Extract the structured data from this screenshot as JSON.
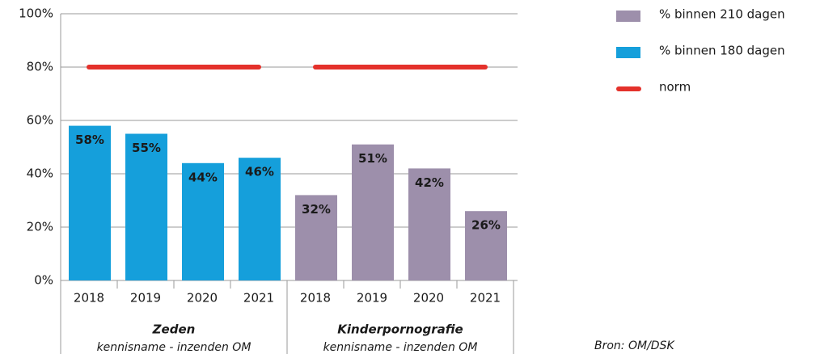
{
  "chart_data": {
    "type": "bar",
    "groups": [
      {
        "name": "Zeden",
        "note": "kennisname - inzenden OM",
        "categories": [
          "2018",
          "2019",
          "2020",
          "2021"
        ]
      },
      {
        "name": "Kinderpornografie",
        "note": "kennisname - inzenden OM",
        "categories": [
          "2018",
          "2019",
          "2020",
          "2021"
        ]
      }
    ],
    "series": [
      {
        "name": "% binnen 210 dagen",
        "color": "#9d8fab",
        "values": [
          null,
          null,
          null,
          null,
          32,
          51,
          42,
          26
        ],
        "value_labels": [
          null,
          null,
          null,
          null,
          "32%",
          "51%",
          "42%",
          "26%"
        ]
      },
      {
        "name": "% binnen 180 dagen",
        "color": "#159fdb",
        "values": [
          58,
          55,
          44,
          46,
          null,
          null,
          null,
          null
        ],
        "value_labels": [
          "58%",
          "55%",
          "44%",
          "46%",
          null,
          null,
          null,
          null
        ]
      },
      {
        "name": "norm",
        "type": "line",
        "color": "#e4312b",
        "values": [
          80,
          80,
          80,
          80,
          80,
          80,
          80,
          80
        ]
      }
    ],
    "ylim": [
      0,
      100
    ],
    "yticks": [
      {
        "value": 0,
        "label": "0%"
      },
      {
        "value": 20,
        "label": "20%"
      },
      {
        "value": 40,
        "label": "40%"
      },
      {
        "value": 60,
        "label": "60%"
      },
      {
        "value": 80,
        "label": "80%"
      },
      {
        "value": 100,
        "label": "100%"
      }
    ],
    "grid": true,
    "legend": "right",
    "source": "Bron: OM/DSK"
  }
}
